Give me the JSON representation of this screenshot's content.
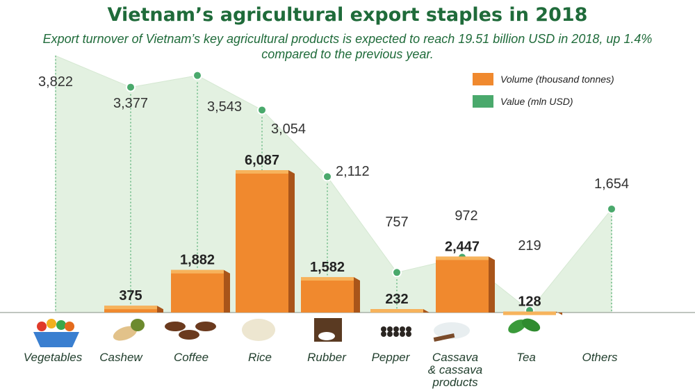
{
  "title": "Vietnam’s  agricultural export staples in 2018",
  "subtitle": "Export turnover of Vietnam’s key agricultural products is expected to reach 19.51 billion USD in 2018,  up 1.4% compared to the previous year.",
  "colors": {
    "volume": "#f0892e",
    "value": "#4aa96c",
    "area": "#e3f1e1",
    "title": "#1f6b3a"
  },
  "icons": [
    "vegetables-basket-icon",
    "cashew-icon",
    "coffee-beans-icon",
    "rice-grains-icon",
    "rubber-tree-icon",
    "pepper-icon",
    "cassava-flour-icon",
    "tea-leaves-icon"
  ],
  "chart_data": {
    "type": "bar",
    "categories": [
      "Vegetables",
      "Cashew",
      "Coffee",
      "Rice",
      "Rubber",
      "Pepper",
      "Cassava & cassava products",
      "Tea",
      "Others"
    ],
    "series": [
      {
        "name": "Volume (thousand tonnes)",
        "type": "bar",
        "values": [
          null,
          375,
          1882,
          6087,
          1582,
          232,
          2447,
          128,
          null
        ],
        "labels": [
          "",
          "375",
          "1,882",
          "6,087",
          "1,582",
          "232",
          "2,447",
          "128",
          ""
        ]
      },
      {
        "name": "Value (mln USD)",
        "type": "area",
        "values": [
          3822,
          3377,
          3543,
          3054,
          2112,
          757,
          972,
          219,
          1654
        ],
        "labels": [
          "3,822",
          "3,377",
          "3,543",
          "3,054",
          "2,112",
          "757",
          "972",
          "219",
          "1,654"
        ]
      }
    ],
    "legend_position": "top-right",
    "grid": false
  }
}
